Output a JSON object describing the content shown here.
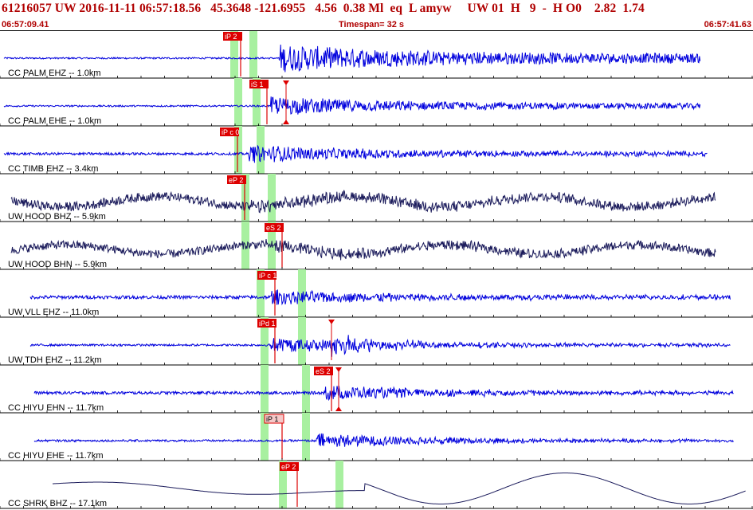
{
  "header": {
    "event_line": "61216057 UW 2016-11-11 06:57:18.56   45.3648 -121.6955   4.56  0.38 Ml  eq  L amyw     UW 01  H   9  -  H O0    2.82  1.74",
    "start_time": "06:57:09.41",
    "timespan_label": "Timespan=  32 s",
    "end_time": "06:57:41.63"
  },
  "colors": {
    "header_text": "#b00000",
    "trace_blue": "#0000dd",
    "trace_dark": "#1c1c5c",
    "pick_box": "#dd0000",
    "pick_box_light": "#f4c8c8",
    "pick_line": "#dd0000",
    "window_green": "#a8f0a0",
    "grid": "#000000"
  },
  "channels": [
    {
      "label": "CC PALM EHZ -- 1.0km",
      "color": "trace_blue",
      "style": "burst",
      "onset": 0.37,
      "end": 0.93,
      "amp": 0.85,
      "noise": 0.04,
      "coda": 0.45,
      "greens": [
        0.31,
        0.335
      ],
      "picks": [
        {
          "label": "iP 2",
          "pos": 0.32,
          "kind": "filled"
        }
      ],
      "markers": []
    },
    {
      "label": "CC PALM EHE -- 1.0km",
      "color": "trace_blue",
      "style": "burst",
      "onset": 0.36,
      "end": 0.93,
      "amp": 0.6,
      "noise": 0.04,
      "coda": 0.35,
      "greens": [
        0.315,
        0.34
      ],
      "picks": [
        {
          "label": "iS 1",
          "pos": 0.355,
          "kind": "filled"
        }
      ],
      "markers": [
        {
          "pos": 0.38,
          "dir": "down"
        },
        {
          "pos": 0.38,
          "dir": "up"
        }
      ]
    },
    {
      "label": "CC TIMB EHZ -- 3.4km",
      "color": "trace_blue",
      "style": "burst",
      "onset": 0.33,
      "end": 0.94,
      "amp": 0.6,
      "noise": 0.06,
      "coda": 0.25,
      "greens": [
        0.315,
        0.345
      ],
      "picks": [
        {
          "label": "iP c 0",
          "pos": 0.315,
          "kind": "filled"
        }
      ],
      "markers": []
    },
    {
      "label": "UW HOOD BHZ -- 5.9km",
      "color": "trace_dark",
      "style": "wave",
      "onset": 0.33,
      "end": 0.95,
      "amp": 0.25,
      "noise": 0.22,
      "coda": 0.0,
      "start": 0.015,
      "greens": [
        0.325,
        0.36
      ],
      "picks": [
        {
          "label": "eP 2",
          "pos": 0.325,
          "kind": "filled"
        }
      ],
      "markers": []
    },
    {
      "label": "UW HOOD BHN -- 5.9km",
      "color": "trace_dark",
      "style": "wave",
      "onset": 0.35,
      "end": 0.95,
      "amp": 0.22,
      "noise": 0.2,
      "coda": 0.0,
      "start": 0.015,
      "greens": [
        0.325,
        0.36
      ],
      "picks": [
        {
          "label": "eS 2",
          "pos": 0.375,
          "kind": "filled"
        }
      ],
      "markers": []
    },
    {
      "label": "UW VLL EHZ -- 11.0km",
      "color": "trace_blue",
      "style": "burst",
      "onset": 0.36,
      "end": 0.97,
      "amp": 0.5,
      "noise": 0.08,
      "coda": 0.2,
      "start": 0.04,
      "greens": [
        0.345,
        0.4
      ],
      "picks": [
        {
          "label": "iP c 1",
          "pos": 0.365,
          "kind": "filled"
        }
      ],
      "markers": []
    },
    {
      "label": "UW TDH EHZ -- 11.2km",
      "color": "trace_blue",
      "style": "burst",
      "onset": 0.36,
      "end": 0.97,
      "amp": 0.55,
      "noise": 0.05,
      "coda": 0.15,
      "start": 0.04,
      "burst2": 0.44,
      "greens": [
        0.35,
        0.4
      ],
      "picks": [
        {
          "label": "iPd 1",
          "pos": 0.365,
          "kind": "filled"
        }
      ],
      "markers": [
        {
          "pos": 0.44,
          "dir": "down"
        }
      ]
    },
    {
      "label": "CC HIYU EHN -- 11.7km",
      "color": "trace_blue",
      "style": "burst",
      "onset": 0.43,
      "end": 0.975,
      "amp": 0.55,
      "noise": 0.07,
      "coda": 0.12,
      "start": 0.045,
      "greens": [
        0.35,
        0.405
      ],
      "picks": [
        {
          "label": "eS 2",
          "pos": 0.44,
          "kind": "filled"
        }
      ],
      "markers": [
        {
          "pos": 0.45,
          "dir": "down"
        },
        {
          "pos": 0.45,
          "dir": "up"
        }
      ]
    },
    {
      "label": "CC HIYU EHE -- 11.7km",
      "color": "trace_blue",
      "style": "burst",
      "onset": 0.42,
      "end": 0.975,
      "amp": 0.55,
      "noise": 0.05,
      "coda": 0.12,
      "start": 0.045,
      "greens": [
        0.35,
        0.405
      ],
      "picks": [
        {
          "label": "iP 1",
          "pos": 0.375,
          "kind": "light"
        }
      ],
      "markers": []
    },
    {
      "label": "CC SHRK BHZ -- 17.1km",
      "color": "trace_dark",
      "style": "sine",
      "onset": 0.0,
      "end": 0.99,
      "amp": 0.75,
      "noise": 0.0,
      "coda": 0.0,
      "start": 0.07,
      "greens": [
        0.375,
        0.45
      ],
      "picks": [
        {
          "label": "eP 2",
          "pos": 0.395,
          "kind": "filled"
        }
      ],
      "markers": []
    }
  ]
}
